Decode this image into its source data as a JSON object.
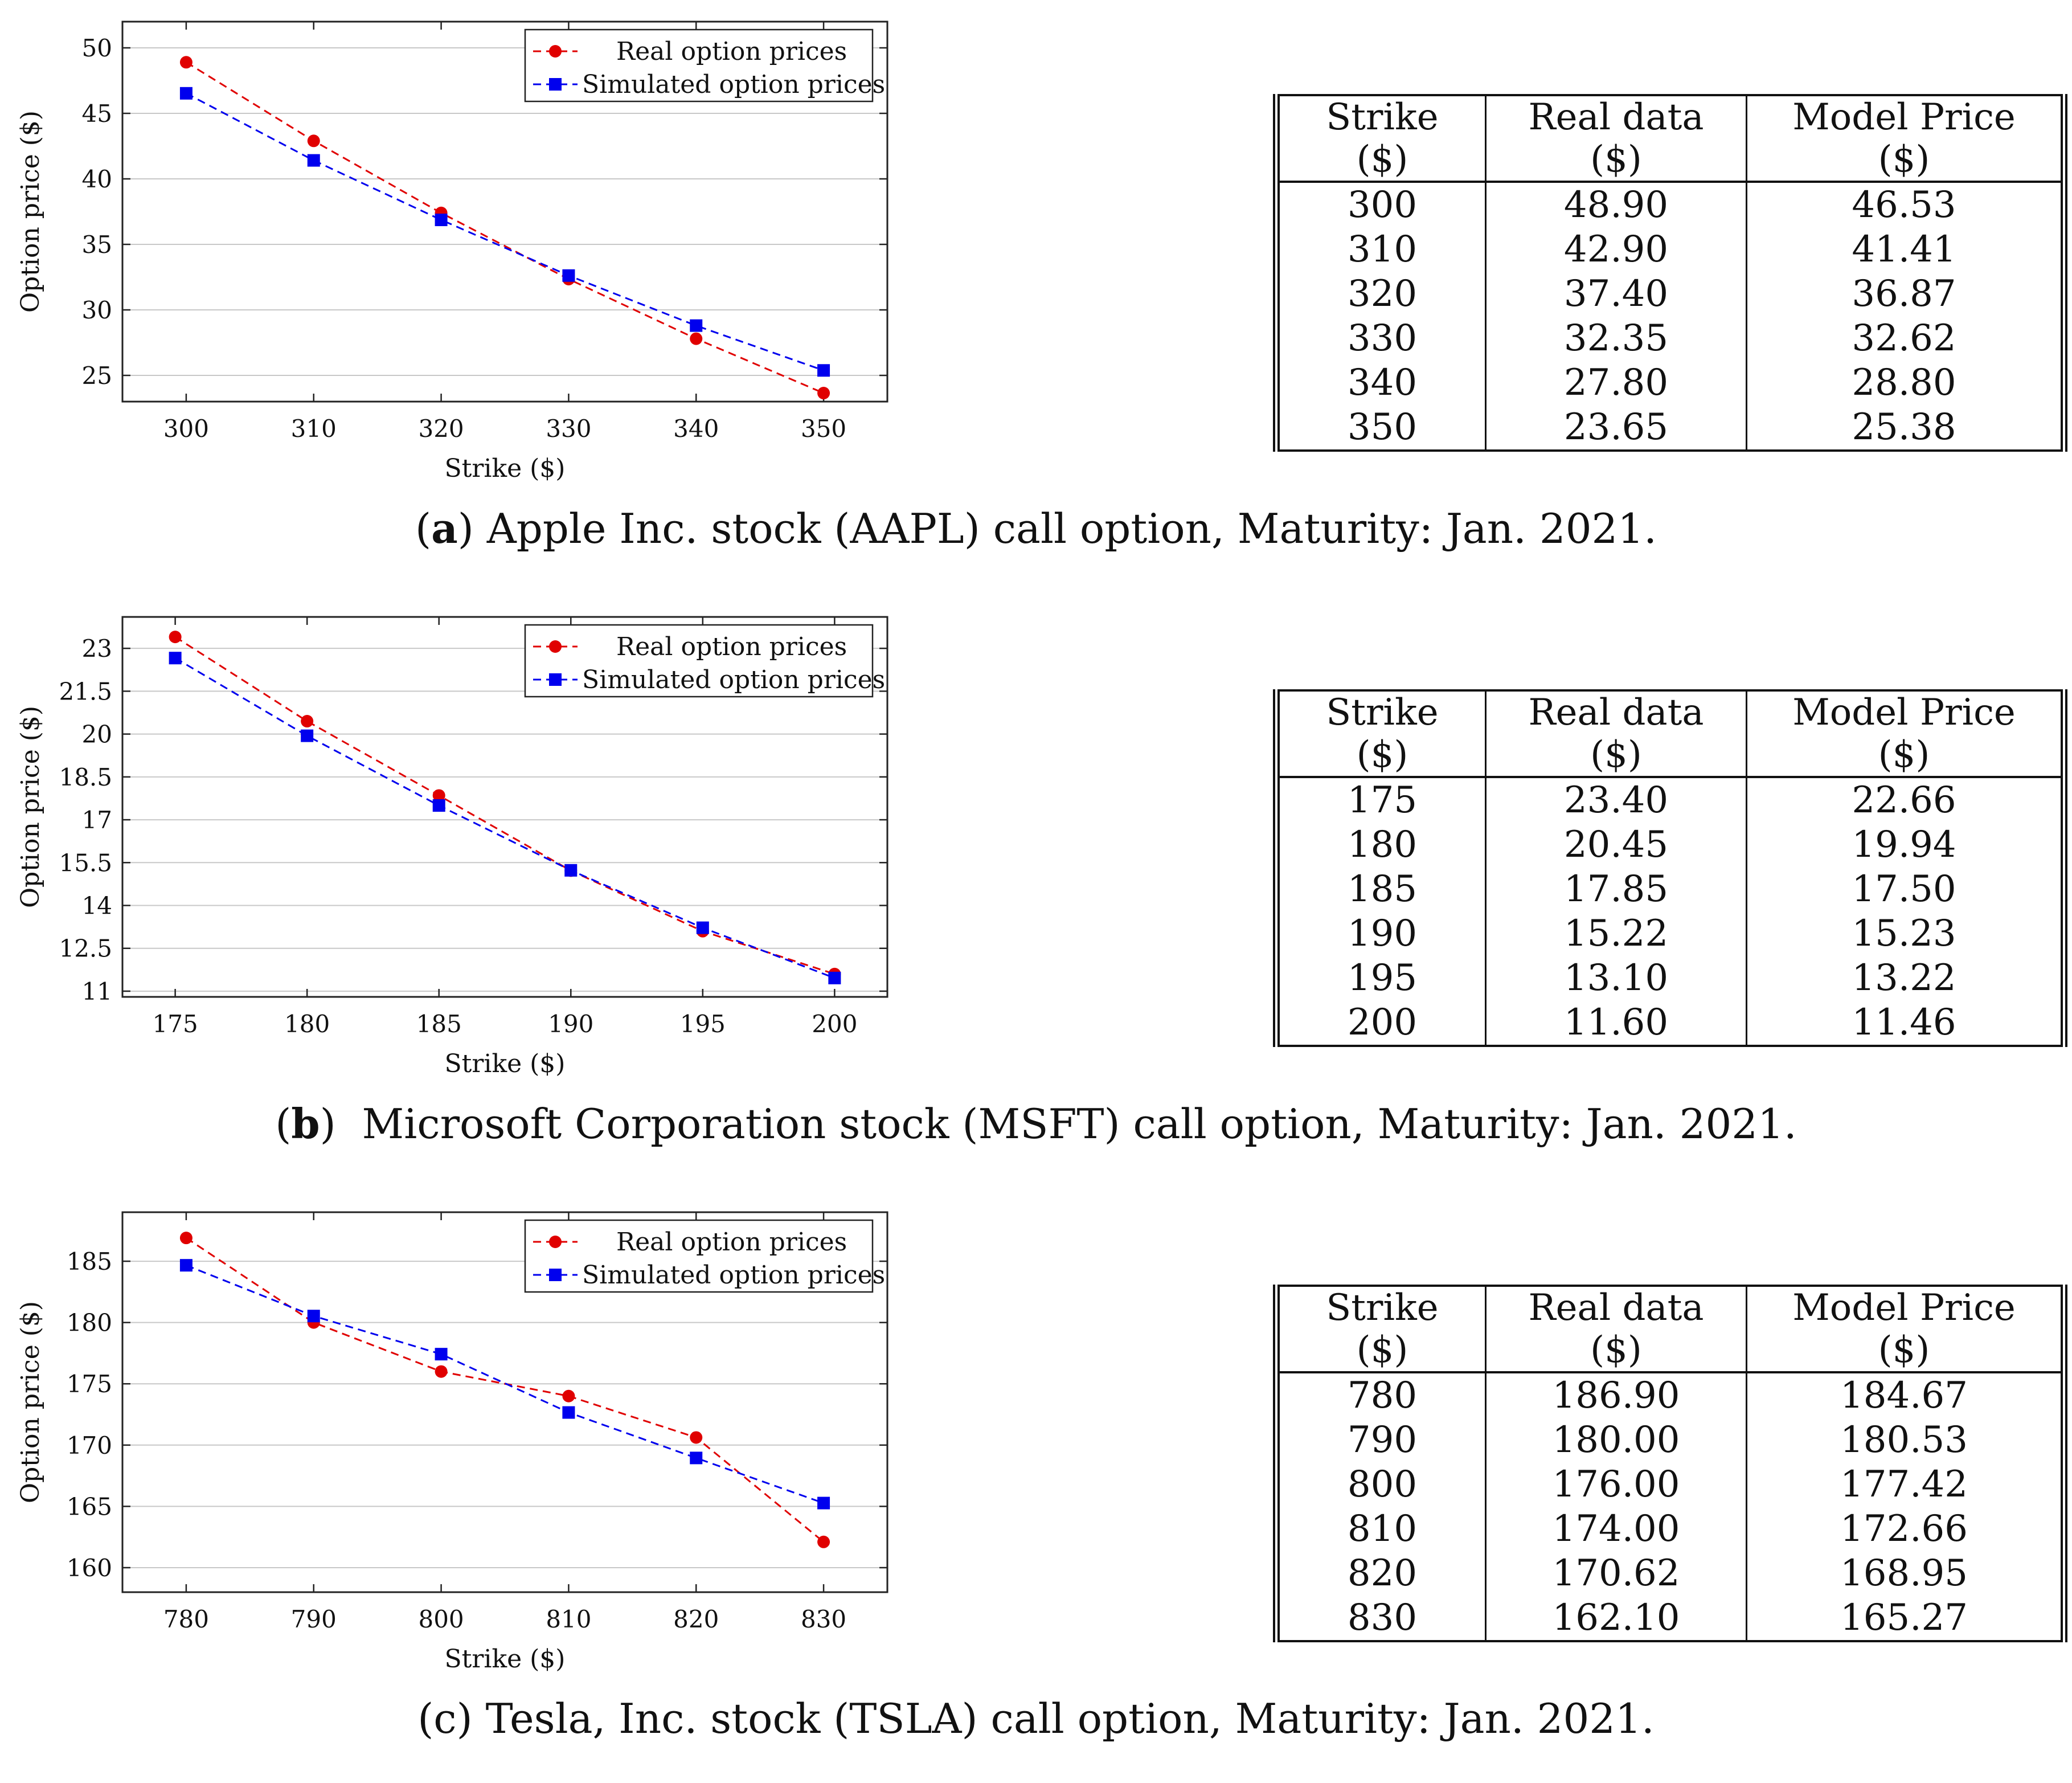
{
  "legend": {
    "real_label": "Real option prices",
    "sim_label": "Simulated option prices",
    "real_color": "#e00000",
    "sim_color": "#0000ee"
  },
  "table_headers": [
    "Strike ($)",
    "Real data ($)",
    "Model Price ($)"
  ],
  "chart_data": [
    {
      "type": "line",
      "title": "",
      "xlabel": "Strike ($)",
      "ylabel": "Option price ($)",
      "x": [
        300,
        310,
        320,
        330,
        340,
        350
      ],
      "xlim": [
        295,
        355
      ],
      "ylim": [
        23,
        52
      ],
      "xticks": [
        300,
        310,
        320,
        330,
        340,
        350
      ],
      "yticks": [
        25,
        30,
        35,
        40,
        45,
        50
      ],
      "ytick_labels": [
        "25",
        "30",
        "35",
        "40",
        "45",
        "50"
      ],
      "grid": true,
      "legend_position": "top-right",
      "series": [
        {
          "name": "Real option prices",
          "values": [
            48.9,
            42.9,
            37.4,
            32.35,
            27.8,
            23.65
          ]
        },
        {
          "name": "Simulated option prices",
          "values": [
            46.53,
            41.41,
            36.87,
            32.62,
            28.8,
            25.38
          ]
        }
      ],
      "table_rows": [
        [
          "300",
          "48.90",
          "46.53"
        ],
        [
          "310",
          "42.90",
          "41.41"
        ],
        [
          "320",
          "37.40",
          "36.87"
        ],
        [
          "330",
          "32.35",
          "32.62"
        ],
        [
          "340",
          "27.80",
          "28.80"
        ],
        [
          "350",
          "23.65",
          "25.38"
        ]
      ],
      "caption_letter": "(a)",
      "caption_text": " Apple Inc. stock (AAPL) call option, Maturity: Jan. 2021."
    },
    {
      "type": "line",
      "title": "",
      "xlabel": "Strike ($)",
      "ylabel": "Option price ($)",
      "x": [
        175,
        180,
        185,
        190,
        195,
        200
      ],
      "xlim": [
        173,
        202
      ],
      "ylim": [
        10.8,
        24.1
      ],
      "xticks": [
        175,
        180,
        185,
        190,
        195,
        200
      ],
      "yticks": [
        11,
        12.5,
        14,
        15.5,
        17,
        18.5,
        20,
        21.5,
        23
      ],
      "ytick_labels": [
        "11",
        "12.5",
        "14",
        "15.5",
        "17",
        "18.5",
        "20",
        "21.5",
        "23"
      ],
      "grid": true,
      "legend_position": "top-right",
      "series": [
        {
          "name": "Real option prices",
          "values": [
            23.4,
            20.45,
            17.85,
            15.22,
            13.1,
            11.6
          ]
        },
        {
          "name": "Simulated option prices",
          "values": [
            22.66,
            19.94,
            17.5,
            15.23,
            13.22,
            11.46
          ]
        }
      ],
      "table_rows": [
        [
          "175",
          "23.40",
          "22.66"
        ],
        [
          "180",
          "20.45",
          "19.94"
        ],
        [
          "185",
          "17.85",
          "17.50"
        ],
        [
          "190",
          "15.22",
          "15.23"
        ],
        [
          "195",
          "13.10",
          "13.22"
        ],
        [
          "200",
          "11.60",
          "11.46"
        ]
      ],
      "caption_letter": "(b)",
      "caption_text": "  Microsoft Corporation stock (MSFT) call option, Maturity: Jan. 2021."
    },
    {
      "type": "line",
      "title": "",
      "xlabel": "Strike ($)",
      "ylabel": "Option price ($)",
      "x": [
        780,
        790,
        800,
        810,
        820,
        830
      ],
      "xlim": [
        775,
        835
      ],
      "ylim": [
        158,
        189
      ],
      "xticks": [
        780,
        790,
        800,
        810,
        820,
        830
      ],
      "yticks": [
        160,
        165,
        170,
        175,
        180,
        185
      ],
      "ytick_labels": [
        "160",
        "165",
        "170",
        "175",
        "180",
        "185"
      ],
      "grid": true,
      "legend_position": "top-right",
      "series": [
        {
          "name": "Real option prices",
          "values": [
            186.9,
            180.0,
            176.0,
            174.0,
            170.62,
            162.1
          ]
        },
        {
          "name": "Simulated option prices",
          "values": [
            184.67,
            180.53,
            177.42,
            172.66,
            168.95,
            165.27
          ]
        }
      ],
      "table_rows": [
        [
          "780",
          "186.90",
          "184.67"
        ],
        [
          "790",
          "180.00",
          "180.53"
        ],
        [
          "800",
          "176.00",
          "177.42"
        ],
        [
          "810",
          "174.00",
          "172.66"
        ],
        [
          "820",
          "170.62",
          "168.95"
        ],
        [
          "830",
          "162.10",
          "165.27"
        ]
      ],
      "caption_letter": "(c)",
      "caption_text": " Tesla, Inc. stock (TSLA) call option, Maturity: Jan. 2021."
    }
  ]
}
